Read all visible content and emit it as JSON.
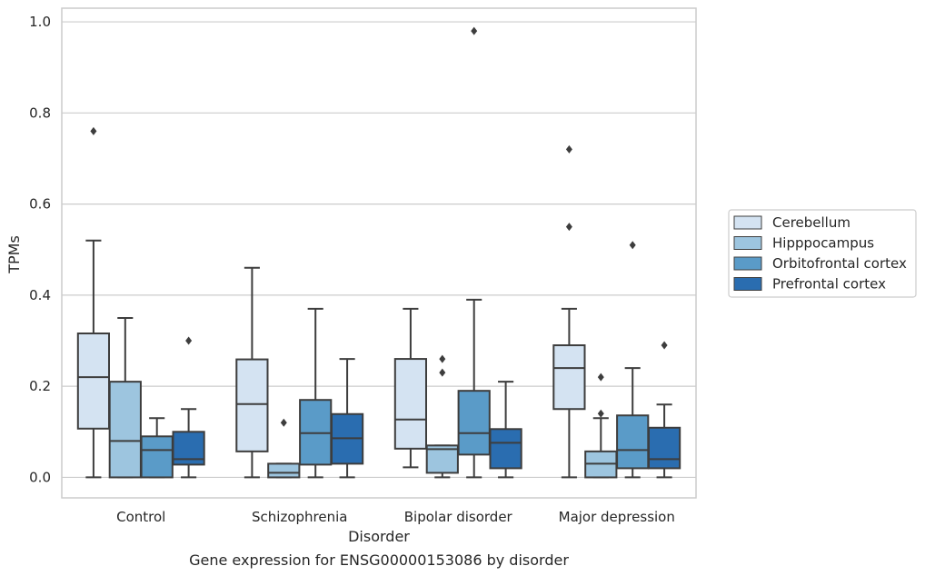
{
  "caption": "Gene expression for ENSG00000153086 by disorder",
  "chart_data": {
    "type": "box",
    "title": "",
    "xlabel": "Disorder",
    "ylabel": "TPMs",
    "ylim": [
      -0.045,
      1.03
    ],
    "yticks": [
      0.0,
      0.2,
      0.4,
      0.6,
      0.8,
      1.0
    ],
    "ytick_labels": [
      "0.0",
      "0.2",
      "0.4",
      "0.6",
      "0.8",
      "1.0"
    ],
    "grid": "horizontal",
    "legend_position": "right",
    "categories": [
      "Control",
      "Schizophrenia",
      "Bipolar disorder",
      "Major depression"
    ],
    "series": [
      {
        "name": "Cerebellum",
        "color": "#d4e3f2",
        "boxes": [
          {
            "whisker_low": 0.0,
            "q1": 0.107,
            "median": 0.22,
            "q3": 0.316,
            "whisker_high": 0.52,
            "outliers": [
              0.76
            ]
          },
          {
            "whisker_low": 0.0,
            "q1": 0.057,
            "median": 0.161,
            "q3": 0.259,
            "whisker_high": 0.46,
            "outliers": []
          },
          {
            "whisker_low": 0.022,
            "q1": 0.063,
            "median": 0.127,
            "q3": 0.26,
            "whisker_high": 0.37,
            "outliers": []
          },
          {
            "whisker_low": 0.0,
            "q1": 0.15,
            "median": 0.24,
            "q3": 0.29,
            "whisker_high": 0.37,
            "outliers": [
              0.72,
              0.55
            ]
          }
        ]
      },
      {
        "name": "Hipppocampus",
        "color": "#9dc5df",
        "boxes": [
          {
            "whisker_low": 0.0,
            "q1": 0.0,
            "median": 0.08,
            "q3": 0.21,
            "whisker_high": 0.35,
            "outliers": []
          },
          {
            "whisker_low": 0.0,
            "q1": 0.0,
            "median": 0.01,
            "q3": 0.03,
            "whisker_high": 0.03,
            "outliers": [
              0.12
            ]
          },
          {
            "whisker_low": 0.0,
            "q1": 0.01,
            "median": 0.062,
            "q3": 0.07,
            "whisker_high": 0.07,
            "outliers": [
              0.26,
              0.23
            ]
          },
          {
            "whisker_low": 0.0,
            "q1": 0.0,
            "median": 0.03,
            "q3": 0.057,
            "whisker_high": 0.13,
            "outliers": [
              0.22,
              0.14
            ]
          }
        ]
      },
      {
        "name": "Orbitofrontal cortex",
        "color": "#5a9bc8",
        "boxes": [
          {
            "whisker_low": 0.0,
            "q1": 0.0,
            "median": 0.06,
            "q3": 0.09,
            "whisker_high": 0.13,
            "outliers": []
          },
          {
            "whisker_low": 0.0,
            "q1": 0.028,
            "median": 0.097,
            "q3": 0.17,
            "whisker_high": 0.37,
            "outliers": []
          },
          {
            "whisker_low": 0.0,
            "q1": 0.05,
            "median": 0.097,
            "q3": 0.19,
            "whisker_high": 0.39,
            "outliers": [
              0.98
            ]
          },
          {
            "whisker_low": 0.0,
            "q1": 0.02,
            "median": 0.06,
            "q3": 0.136,
            "whisker_high": 0.24,
            "outliers": [
              0.51
            ]
          }
        ]
      },
      {
        "name": "Prefrontal cortex",
        "color": "#2a6db0",
        "boxes": [
          {
            "whisker_low": 0.0,
            "q1": 0.028,
            "median": 0.04,
            "q3": 0.1,
            "whisker_high": 0.15,
            "outliers": [
              0.3
            ]
          },
          {
            "whisker_low": 0.0,
            "q1": 0.03,
            "median": 0.086,
            "q3": 0.139,
            "whisker_high": 0.26,
            "outliers": []
          },
          {
            "whisker_low": 0.0,
            "q1": 0.02,
            "median": 0.076,
            "q3": 0.106,
            "whisker_high": 0.21,
            "outliers": []
          },
          {
            "whisker_low": 0.0,
            "q1": 0.02,
            "median": 0.04,
            "q3": 0.109,
            "whisker_high": 0.16,
            "outliers": [
              0.29
            ]
          }
        ]
      }
    ]
  }
}
